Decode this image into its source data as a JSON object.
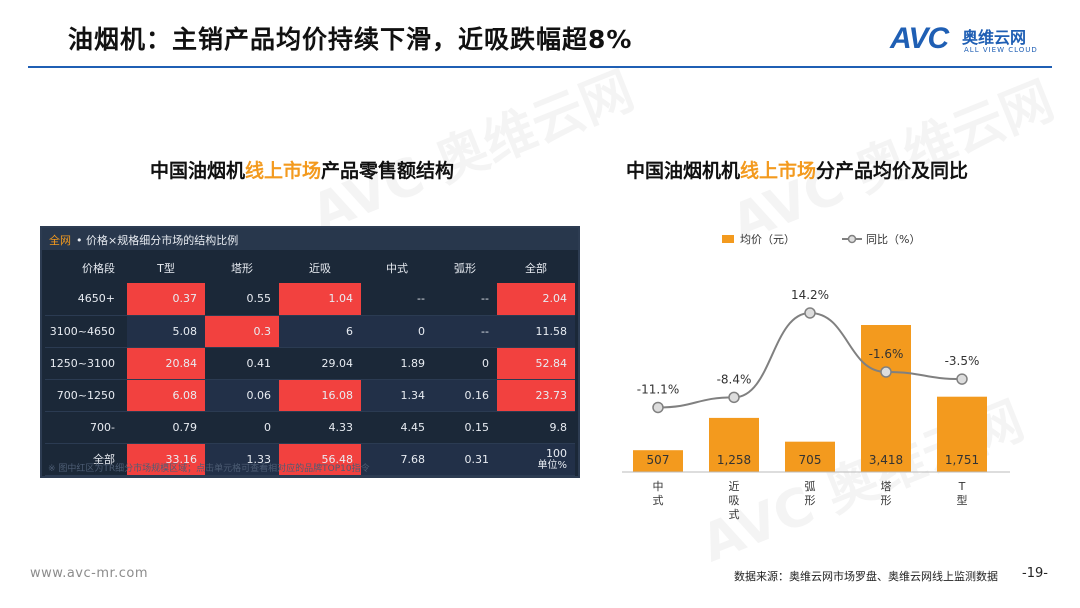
{
  "header": {
    "title": "油烟机：主销产品均价持续下滑，近吸跌幅超8%",
    "logo_text": "AVC",
    "logo_cn": "奥维云网",
    "logo_en": "ALL VIEW CLOUD"
  },
  "left_section": {
    "title_prefix": "中国油烟机",
    "title_highlight": "线上市场",
    "title_suffix": "产品零售额结构"
  },
  "right_section": {
    "title_prefix": "中国油烟机机",
    "title_highlight": "线上市场",
    "title_suffix": "分产品均价及同比"
  },
  "table": {
    "tag": "全网",
    "title": "• 价格×规格细分市场的结构比例",
    "columns": [
      "价格段",
      "T型",
      "塔形",
      "近吸",
      "中式",
      "弧形",
      "全部"
    ],
    "rows": [
      {
        "cells": [
          "4650+",
          "0.37",
          "0.55",
          "1.04",
          "--",
          "--",
          "2.04"
        ],
        "hot": [
          1,
          3,
          6
        ]
      },
      {
        "cells": [
          "3100~4650",
          "5.08",
          "0.3",
          "6",
          "0",
          "--",
          "11.58"
        ],
        "hot": [
          2
        ]
      },
      {
        "cells": [
          "1250~3100",
          "20.84",
          "0.41",
          "29.04",
          "1.89",
          "0",
          "52.84"
        ],
        "hot": [
          1,
          6
        ]
      },
      {
        "cells": [
          "700~1250",
          "6.08",
          "0.06",
          "16.08",
          "1.34",
          "0.16",
          "23.73"
        ],
        "hot": [
          1,
          3,
          6
        ]
      },
      {
        "cells": [
          "700-",
          "0.79",
          "0",
          "4.33",
          "4.45",
          "0.15",
          "9.8"
        ],
        "hot": []
      },
      {
        "cells": [
          "全部",
          "33.16",
          "1.33",
          "56.48",
          "7.68",
          "0.31",
          "100"
        ],
        "hot": [
          1,
          3
        ]
      }
    ],
    "unit_note": "单位%",
    "footnote": "※ 图中红区为TR细分市场规模区域；点击单元格可查看相对应的品牌TOP10指令"
  },
  "chart_data": {
    "type": "bar",
    "categories": [
      "中式",
      "近吸式",
      "弧形",
      "塔形",
      "T型"
    ],
    "series": [
      {
        "name": "均价（元）",
        "type": "bar",
        "values": [
          507,
          1258,
          705,
          3418,
          1751
        ],
        "labels": [
          "507",
          "1,258",
          "705",
          "3,418",
          "1,751"
        ],
        "color": "#f39a1e"
      },
      {
        "name": "同比（%）",
        "type": "line",
        "values": [
          -11.1,
          -8.4,
          14.2,
          -1.6,
          -3.5
        ],
        "labels": [
          "-11.1%",
          "-8.4%",
          "14.2%",
          "-1.6%",
          "-3.5%"
        ],
        "color": "#808080"
      }
    ],
    "legend_position": "top",
    "grid": false,
    "title": "",
    "xlabel": "",
    "ylabel": ""
  },
  "footer": {
    "url": "www.avc-mr.com",
    "source": "数据来源：奥维云网市场罗盘、奥维云网线上监测数据",
    "page": "-19-"
  },
  "colors": {
    "accent": "#f39a1e",
    "brand_blue": "#1f5fb4",
    "hot_cell": "#f2413f",
    "panel_bg": "#1b2838"
  }
}
